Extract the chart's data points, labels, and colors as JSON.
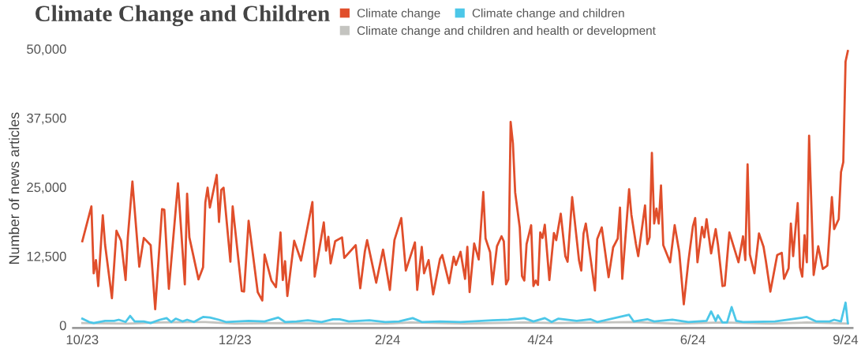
{
  "chart_data": {
    "type": "line",
    "title": "Climate Change and Children",
    "ylabel": "Number of news articles",
    "xlim": [
      "2023-09-29",
      "2024-09-05"
    ],
    "xticks": [
      {
        "value": "2023-10-03",
        "label": "10/23"
      },
      {
        "value": "2023-12-09",
        "label": "12/23"
      },
      {
        "value": "2024-02-14",
        "label": "2/24"
      },
      {
        "value": "2024-04-21",
        "label": "4/24"
      },
      {
        "value": "2024-06-27",
        "label": "6/24"
      },
      {
        "value": "2024-09-02",
        "label": "9/24"
      }
    ],
    "ylim": [
      -500,
      50000
    ],
    "yticks": [
      {
        "value": 0,
        "label": "0"
      },
      {
        "value": 12500,
        "label": "12,500"
      },
      {
        "value": 25000,
        "label": "25,000"
      },
      {
        "value": 37500,
        "label": "37,500"
      },
      {
        "value": 50000,
        "label": "50,000"
      }
    ],
    "grid": false,
    "legend": "top",
    "marker": "none",
    "line_style": "solid",
    "series": [
      {
        "name": "Climate change",
        "color": "#e04e2b",
        "x": [
          "2023-10-03",
          "2023-10-07",
          "2023-10-08",
          "2023-10-09",
          "2023-10-10",
          "2023-10-12",
          "2023-10-13",
          "2023-10-16",
          "2023-10-18",
          "2023-10-20",
          "2023-10-22",
          "2023-10-23",
          "2023-10-25",
          "2023-10-28",
          "2023-10-30",
          "2023-11-02",
          "2023-11-04",
          "2023-11-07",
          "2023-11-08",
          "2023-11-10",
          "2023-11-14",
          "2023-11-17",
          "2023-11-18",
          "2023-11-19",
          "2023-11-23",
          "2023-11-25",
          "2023-11-26",
          "2023-11-27",
          "2023-11-28",
          "2023-12-01",
          "2023-12-02",
          "2023-12-03",
          "2023-12-04",
          "2023-12-07",
          "2023-12-08",
          "2023-12-09",
          "2023-12-12",
          "2023-12-13",
          "2023-12-15",
          "2023-12-19",
          "2023-12-21",
          "2023-12-22",
          "2023-12-25",
          "2023-12-27",
          "2023-12-29",
          "2023-12-30",
          "2023-12-31",
          "2024-01-01",
          "2024-01-04",
          "2024-01-07",
          "2024-01-12",
          "2024-01-13",
          "2024-01-17",
          "2024-01-18",
          "2024-01-19",
          "2024-01-20",
          "2024-01-22",
          "2024-01-25",
          "2024-01-26",
          "2024-01-31",
          "2024-02-02",
          "2024-02-04",
          "2024-02-05",
          "2024-02-09",
          "2024-02-12",
          "2024-02-15",
          "2024-02-17",
          "2024-02-20",
          "2024-02-22",
          "2024-02-26",
          "2024-02-27",
          "2024-02-29",
          "2024-03-01",
          "2024-03-03",
          "2024-03-05",
          "2024-03-08",
          "2024-03-09",
          "2024-03-12",
          "2024-03-14",
          "2024-03-15",
          "2024-03-17",
          "2024-03-19",
          "2024-03-20",
          "2024-03-21",
          "2024-03-23",
          "2024-03-25",
          "2024-03-27",
          "2024-03-28",
          "2024-03-30",
          "2024-03-31",
          "2024-04-02",
          "2024-04-04",
          "2024-04-05",
          "2024-04-06",
          "2024-04-07",
          "2024-04-08",
          "2024-04-09",
          "2024-04-10",
          "2024-04-12",
          "2024-04-13",
          "2024-04-14",
          "2024-04-15",
          "2024-04-17",
          "2024-04-18",
          "2024-04-19",
          "2024-04-20",
          "2024-04-21",
          "2024-04-22",
          "2024-04-23",
          "2024-04-25",
          "2024-04-27",
          "2024-04-28",
          "2024-04-30",
          "2024-05-02",
          "2024-05-03",
          "2024-05-05",
          "2024-05-08",
          "2024-05-09",
          "2024-05-10",
          "2024-05-11",
          "2024-05-15",
          "2024-05-16",
          "2024-05-18",
          "2024-05-21",
          "2024-05-23",
          "2024-05-25",
          "2024-05-26",
          "2024-05-27",
          "2024-05-30",
          "2024-05-31",
          "2024-06-02",
          "2024-06-03",
          "2024-06-06",
          "2024-06-07",
          "2024-06-08",
          "2024-06-09",
          "2024-06-10",
          "2024-06-11",
          "2024-06-12",
          "2024-06-13",
          "2024-06-14",
          "2024-06-17",
          "2024-06-19",
          "2024-06-21",
          "2024-06-23",
          "2024-06-25",
          "2024-06-27",
          "2024-06-28",
          "2024-06-29",
          "2024-07-01",
          "2024-07-02",
          "2024-07-03",
          "2024-07-05",
          "2024-07-07",
          "2024-07-08",
          "2024-07-10",
          "2024-07-11",
          "2024-07-13",
          "2024-07-17",
          "2024-07-19",
          "2024-07-20",
          "2024-07-21",
          "2024-07-22",
          "2024-07-24",
          "2024-07-26",
          "2024-07-28",
          "2024-07-29",
          "2024-07-31",
          "2024-08-03",
          "2024-08-05",
          "2024-08-06",
          "2024-08-08",
          "2024-08-09",
          "2024-08-10",
          "2024-08-12",
          "2024-08-13",
          "2024-08-14",
          "2024-08-15",
          "2024-08-16",
          "2024-08-17",
          "2024-08-19",
          "2024-08-21",
          "2024-08-23",
          "2024-08-25",
          "2024-08-27",
          "2024-08-28",
          "2024-08-30",
          "2024-08-31",
          "2024-09-01",
          "2024-09-02",
          "2024-09-03"
        ],
        "values": [
          15200,
          21500,
          9400,
          11800,
          7100,
          19900,
          14600,
          4900,
          17100,
          15300,
          8200,
          16000,
          26000,
          10600,
          15800,
          14500,
          2900,
          21000,
          20900,
          6600,
          25700,
          7400,
          23800,
          15900,
          8300,
          10500,
          22200,
          24900,
          21300,
          27200,
          18700,
          24500,
          24900,
          11500,
          21500,
          17700,
          6200,
          6100,
          18900,
          6000,
          4500,
          12800,
          8100,
          6900,
          16800,
          8200,
          11600,
          5300,
          15300,
          11700,
          22300,
          8800,
          18600,
          13500,
          16000,
          11200,
          15200,
          15900,
          12200,
          14500,
          6700,
          13300,
          15400,
          7700,
          13700,
          6400,
          15400,
          19400,
          9900,
          15000,
          6400,
          14200,
          9400,
          11800,
          5600,
          12000,
          12700,
          7600,
          12400,
          10900,
          13300,
          8400,
          14200,
          6000,
          14800,
          11900,
          24100,
          15700,
          13200,
          7400,
          14300,
          16100,
          15200,
          7400,
          8300,
          36800,
          32900,
          24000,
          17700,
          8900,
          8100,
          14700,
          18100,
          7100,
          8100,
          7300,
          16800,
          15800,
          18200,
          8200,
          16700,
          15400,
          20200,
          12500,
          11500,
          23200,
          11800,
          9900,
          16600,
          18400,
          6300,
          15600,
          17700,
          8700,
          14100,
          15700,
          21300,
          8400,
          24600,
          20000,
          14700,
          12500,
          21700,
          14700,
          15900,
          31200,
          18400,
          21100,
          18400,
          25300,
          14500,
          11400,
          18100,
          13300,
          3800,
          11500,
          17900,
          19400,
          11400,
          17800,
          15900,
          19200,
          13000,
          17400,
          14600,
          7100,
          7200,
          16800,
          11400,
          16100,
          11800,
          29100,
          12800,
          9400,
          16600,
          14200,
          11700,
          6100,
          12700,
          13100,
          8400,
          10300,
          18400,
          12500,
          22100,
          10500,
          8800,
          16300,
          11400,
          34300,
          9100,
          14300,
          10200,
          10800,
          23200,
          17400,
          19200,
          27700,
          29500,
          47700,
          49600
        ]
      },
      {
        "name": "Climate change and children",
        "color": "#4cc7e8",
        "x": [
          "2023-10-03",
          "2023-10-06",
          "2023-10-08",
          "2023-10-13",
          "2023-10-17",
          "2023-10-19",
          "2023-10-22",
          "2023-10-24",
          "2023-10-26",
          "2023-10-30",
          "2023-11-02",
          "2023-11-06",
          "2023-11-09",
          "2023-11-11",
          "2023-11-13",
          "2023-11-16",
          "2023-11-18",
          "2023-11-21",
          "2023-11-25",
          "2023-11-28",
          "2023-12-02",
          "2023-12-05",
          "2023-12-10",
          "2023-12-15",
          "2023-12-22",
          "2023-12-28",
          "2023-12-31",
          "2024-01-05",
          "2024-01-10",
          "2024-01-16",
          "2024-01-21",
          "2024-01-24",
          "2024-01-28",
          "2024-02-06",
          "2024-02-13",
          "2024-02-19",
          "2024-02-25",
          "2024-02-29",
          "2024-03-08",
          "2024-03-17",
          "2024-03-31",
          "2024-04-07",
          "2024-04-14",
          "2024-04-18",
          "2024-04-23",
          "2024-04-26",
          "2024-04-29",
          "2024-05-07",
          "2024-05-13",
          "2024-05-16",
          "2024-05-30",
          "2024-06-01",
          "2024-06-07",
          "2024-06-10",
          "2024-06-18",
          "2024-06-25",
          "2024-07-03",
          "2024-07-05",
          "2024-07-07",
          "2024-07-08",
          "2024-07-10",
          "2024-07-12",
          "2024-07-14",
          "2024-07-16",
          "2024-07-19",
          "2024-08-02",
          "2024-08-16",
          "2024-08-20",
          "2024-08-26",
          "2024-08-28",
          "2024-08-31",
          "2024-09-02",
          "2024-09-03"
        ],
        "values": [
          1200,
          600,
          400,
          800,
          800,
          1000,
          600,
          1700,
          700,
          700,
          400,
          1000,
          1300,
          600,
          1200,
          700,
          1000,
          600,
          1500,
          1400,
          1000,
          600,
          700,
          800,
          700,
          1400,
          600,
          700,
          900,
          600,
          1100,
          1100,
          700,
          900,
          600,
          700,
          1300,
          600,
          700,
          600,
          900,
          1000,
          1300,
          700,
          1300,
          600,
          1200,
          800,
          1100,
          600,
          1900,
          700,
          1100,
          700,
          1000,
          600,
          800,
          2500,
          800,
          1800,
          500,
          500,
          3300,
          800,
          600,
          700,
          1500,
          700,
          700,
          1000,
          700,
          4100,
          400
        ]
      },
      {
        "name": "Climate change and children and health or development",
        "color": "#c4c4c0",
        "x": [
          "2023-10-03",
          "2023-10-23",
          "2023-11-06",
          "2023-11-26",
          "2023-12-09",
          "2023-12-29",
          "2024-01-18",
          "2024-02-14",
          "2024-02-24",
          "2024-03-19",
          "2024-04-14",
          "2024-04-28",
          "2024-05-31",
          "2024-06-20",
          "2024-07-10",
          "2024-07-31",
          "2024-08-16",
          "2024-09-03"
        ],
        "values": [
          400,
          300,
          500,
          600,
          300,
          400,
          300,
          300,
          500,
          300,
          500,
          400,
          600,
          300,
          500,
          300,
          500,
          300
        ]
      }
    ]
  }
}
